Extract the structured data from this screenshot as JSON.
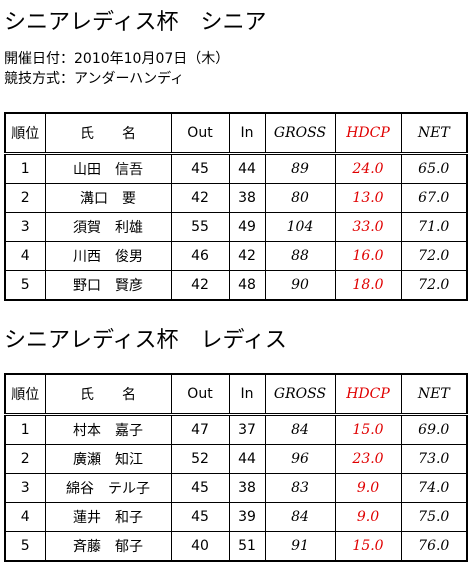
{
  "sections": [
    {
      "title": "シニアレディス杯　シニア",
      "info": [
        "開催日付：2010年10月07日（木）",
        "競技方式：アンダーハンディ"
      ],
      "table": {
        "columns": [
          "順位",
          "氏　　名",
          "Out",
          "In",
          "GROSS",
          "HDCP",
          "NET"
        ],
        "rows": [
          [
            1,
            "山田　信吾",
            45,
            44,
            89,
            "24.0",
            "65.0"
          ],
          [
            2,
            "溝口　要",
            42,
            38,
            80,
            "13.0",
            "67.0"
          ],
          [
            3,
            "須賀　利雄",
            55,
            49,
            104,
            "33.0",
            "71.0"
          ],
          [
            4,
            "川西　俊男",
            46,
            42,
            88,
            "16.0",
            "72.0"
          ],
          [
            5,
            "野口　賢彦",
            42,
            48,
            90,
            "18.0",
            "72.0"
          ]
        ]
      }
    },
    {
      "title": "シニアレディス杯　レディス",
      "table": {
        "columns": [
          "順位",
          "氏　　名",
          "Out",
          "In",
          "GROSS",
          "HDCP",
          "NET"
        ],
        "rows": [
          [
            1,
            "村本　嘉子",
            47,
            37,
            84,
            "15.0",
            "69.0"
          ],
          [
            2,
            "廣瀬　知江",
            52,
            44,
            96,
            "23.0",
            "73.0"
          ],
          [
            3,
            "綿谷　テル子",
            45,
            38,
            83,
            "9.0",
            "74.0"
          ],
          [
            4,
            "蓮井　和子",
            45,
            39,
            84,
            "9.0",
            "75.0"
          ],
          [
            5,
            "斉藤　郁子",
            40,
            51,
            91,
            "15.0",
            "76.0"
          ]
        ]
      }
    }
  ]
}
